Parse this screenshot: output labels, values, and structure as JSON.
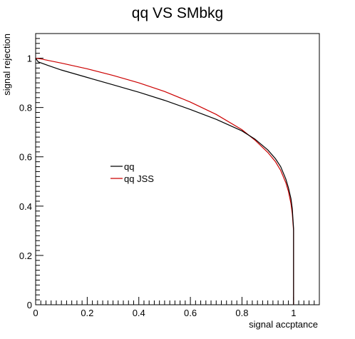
{
  "chart_data": {
    "type": "line",
    "title": "qq VS SMbkg",
    "xlabel": "signal accptance",
    "ylabel": "signal rejection",
    "xlim": [
      0,
      1.1
    ],
    "ylim": [
      0,
      1.1
    ],
    "x_ticks": [
      {
        "value": 0,
        "label": "0"
      },
      {
        "value": 0.2,
        "label": "0.2"
      },
      {
        "value": 0.4,
        "label": "0.4"
      },
      {
        "value": 0.6,
        "label": "0.6"
      },
      {
        "value": 0.8,
        "label": "0.8"
      },
      {
        "value": 1,
        "label": "1"
      }
    ],
    "y_ticks": [
      {
        "value": 0,
        "label": "0"
      },
      {
        "value": 0.2,
        "label": "0.2"
      },
      {
        "value": 0.4,
        "label": "0.4"
      },
      {
        "value": 0.6,
        "label": "0.6"
      },
      {
        "value": 0.8,
        "label": "0.8"
      },
      {
        "value": 1,
        "label": "1"
      }
    ],
    "grid": false,
    "legend_position": "center-left",
    "series": [
      {
        "name": "qq",
        "color": "#000000",
        "points": [
          [
            0.0,
            1.0
          ],
          [
            0.01,
            0.985
          ],
          [
            0.05,
            0.97
          ],
          [
            0.1,
            0.952
          ],
          [
            0.2,
            0.922
          ],
          [
            0.3,
            0.892
          ],
          [
            0.4,
            0.862
          ],
          [
            0.5,
            0.829
          ],
          [
            0.6,
            0.792
          ],
          [
            0.7,
            0.752
          ],
          [
            0.8,
            0.705
          ],
          [
            0.85,
            0.672
          ],
          [
            0.9,
            0.628
          ],
          [
            0.93,
            0.592
          ],
          [
            0.95,
            0.56
          ],
          [
            0.97,
            0.51
          ],
          [
            0.98,
            0.475
          ],
          [
            0.99,
            0.43
          ],
          [
            0.995,
            0.39
          ],
          [
            1.0,
            0.31
          ],
          [
            1.0,
            0.0
          ]
        ]
      },
      {
        "name": "qq JSS",
        "color": "#cc0000",
        "points": [
          [
            0.0,
            1.0
          ],
          [
            0.02,
            0.997
          ],
          [
            0.1,
            0.98
          ],
          [
            0.2,
            0.957
          ],
          [
            0.3,
            0.93
          ],
          [
            0.4,
            0.9
          ],
          [
            0.5,
            0.865
          ],
          [
            0.6,
            0.822
          ],
          [
            0.7,
            0.772
          ],
          [
            0.8,
            0.71
          ],
          [
            0.85,
            0.668
          ],
          [
            0.9,
            0.618
          ],
          [
            0.93,
            0.58
          ],
          [
            0.95,
            0.545
          ],
          [
            0.97,
            0.495
          ],
          [
            0.98,
            0.46
          ],
          [
            0.99,
            0.41
          ],
          [
            0.995,
            0.37
          ],
          [
            1.0,
            0.3
          ],
          [
            1.0,
            0.0
          ]
        ]
      }
    ]
  }
}
